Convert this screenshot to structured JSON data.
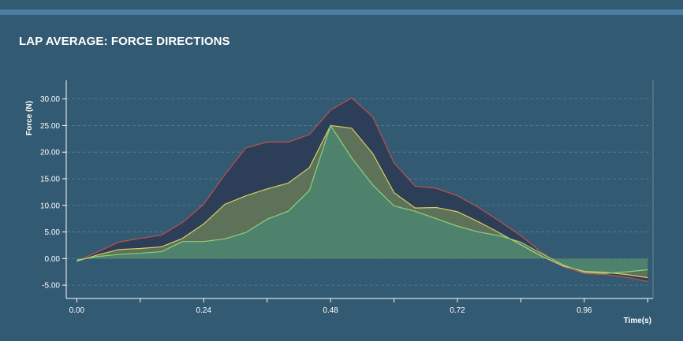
{
  "panel": {
    "title": "LAP AVERAGE: FORCE DIRECTIONS"
  },
  "chart_data": {
    "type": "area",
    "title": "LAP AVERAGE: FORCE DIRECTIONS",
    "xlabel": "Time(s)",
    "ylabel": "Force (N)",
    "xlim": [
      -0.02,
      1.09
    ],
    "ylim": [
      -7.5,
      33.5
    ],
    "x_ticks": [
      "0.00",
      "0.24",
      "0.48",
      "0.72",
      "0.96"
    ],
    "x_tick_values": [
      0,
      0.24,
      0.48,
      0.72,
      0.96
    ],
    "y_ticks": [
      "30.00",
      "25.00",
      "20.00",
      "15.00",
      "10.00",
      "5.00",
      "0.00",
      "-5.00"
    ],
    "y_tick_values": [
      30,
      25,
      20,
      15,
      10,
      5,
      0,
      -5
    ],
    "grid": true,
    "x": [
      0.0,
      0.04,
      0.08,
      0.12,
      0.16,
      0.2,
      0.24,
      0.28,
      0.32,
      0.36,
      0.4,
      0.44,
      0.48,
      0.52,
      0.56,
      0.6,
      0.64,
      0.68,
      0.72,
      0.76,
      0.8,
      0.84,
      0.88,
      0.92,
      0.96,
      1.0,
      1.04,
      1.08
    ],
    "series": [
      {
        "color": "#c0504d",
        "values": [
          -0.5,
          1.3,
          3.1,
          3.8,
          4.4,
          6.8,
          10.2,
          15.8,
          20.8,
          21.9,
          21.9,
          23.3,
          27.9,
          30.2,
          26.6,
          18.0,
          13.6,
          13.2,
          11.8,
          9.6,
          7.0,
          4.3,
          1.1,
          -1.5,
          -2.8,
          -3.0,
          -3.5,
          -4.3
        ]
      },
      {
        "color": "#d7cf63",
        "values": [
          -0.5,
          0.7,
          1.7,
          1.9,
          2.2,
          3.8,
          6.5,
          10.2,
          11.8,
          13.1,
          14.2,
          17.1,
          25.0,
          24.5,
          19.7,
          12.4,
          9.5,
          9.6,
          8.8,
          6.9,
          4.8,
          2.6,
          0.4,
          -1.4,
          -2.4,
          -2.6,
          -3.0,
          -3.6
        ]
      },
      {
        "color": "#8fd07a",
        "values": [
          -0.3,
          0.4,
          0.8,
          1.0,
          1.3,
          3.2,
          3.2,
          3.7,
          4.9,
          7.4,
          8.9,
          12.8,
          25.0,
          18.9,
          13.8,
          9.9,
          8.9,
          7.5,
          6.1,
          5.0,
          4.3,
          3.1,
          0.9,
          -1.2,
          -2.6,
          -2.8,
          -2.5,
          -2.1
        ]
      }
    ]
  }
}
